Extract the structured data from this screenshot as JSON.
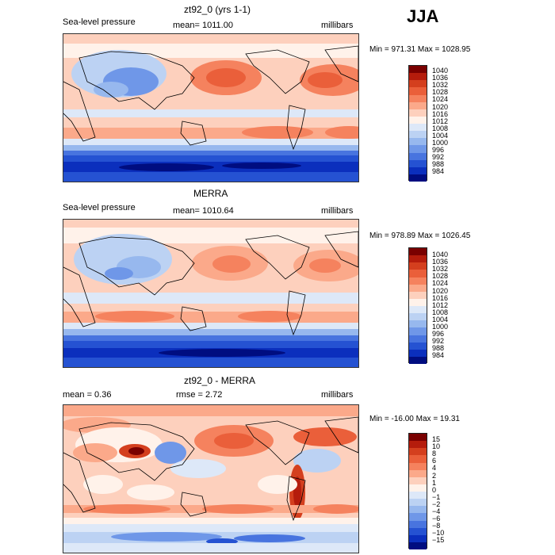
{
  "season": "JJA",
  "panels": [
    {
      "title": "zt92_0 (yrs 1-1)",
      "left_label": "Sea-level pressure",
      "center_label": "mean= 1011.00",
      "right_label": "millibars",
      "minmax": "Min = 971.31 Max = 1028.95",
      "colorbar_labels": [
        "1040",
        "1036",
        "1032",
        "1028",
        "1024",
        "1020",
        "1016",
        "1012",
        "1008",
        "1004",
        "1000",
        "996",
        "992",
        "988",
        "984"
      ]
    },
    {
      "title": "MERRA",
      "left_label": "Sea-level pressure",
      "center_label": "mean= 1010.64",
      "right_label": "millibars",
      "minmax": "Min = 978.89 Max = 1026.45",
      "colorbar_labels": [
        "1040",
        "1036",
        "1032",
        "1028",
        "1024",
        "1020",
        "1016",
        "1012",
        "1008",
        "1004",
        "1000",
        "996",
        "992",
        "988",
        "984"
      ]
    },
    {
      "title": "zt92_0 - MERRA",
      "left_label": "mean =    0.36",
      "center_label": "rmse =    2.72",
      "right_label": "millibars",
      "minmax": "Min = -16.00 Max =  19.31",
      "colorbar_labels": [
        "15",
        "10",
        "8",
        "6",
        "4",
        "2",
        "1",
        "0",
        "−1",
        "−2",
        "−4",
        "−6",
        "−8",
        "−10",
        "−15"
      ]
    }
  ],
  "colors": {
    "scale": [
      "#7a0000",
      "#b51c0c",
      "#d43f1e",
      "#ea5f3a",
      "#f5825e",
      "#fba98a",
      "#fdd0bd",
      "#fff2ea",
      "#dde8f8",
      "#bcd2f3",
      "#97b8ee",
      "#6f97e8",
      "#4874df",
      "#2552d2",
      "#0b2fbd",
      "#000d80"
    ]
  }
}
